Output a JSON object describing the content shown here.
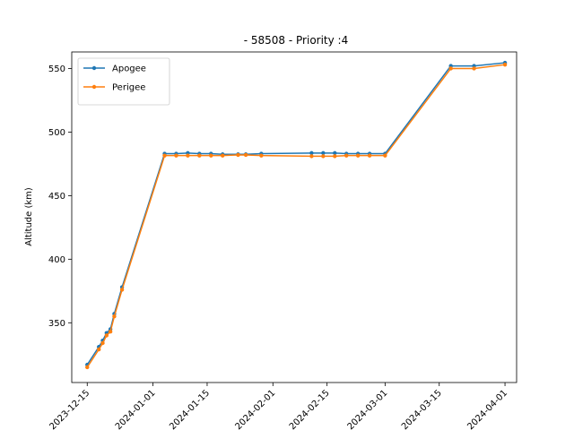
{
  "chart_data": {
    "type": "line",
    "title": "- 58508 - Priority :4",
    "xlabel": "",
    "ylabel": "Altitude (km)",
    "x_range": [
      "2023-12-11",
      "2024-04-04"
    ],
    "ylim": [
      303,
      563
    ],
    "x_ticks": [
      "2023-12-15",
      "2024-01-01",
      "2024-01-15",
      "2024-02-01",
      "2024-02-15",
      "2024-03-01",
      "2024-03-15",
      "2024-04-01"
    ],
    "y_ticks": [
      350,
      400,
      450,
      500,
      550
    ],
    "grid": false,
    "legend_position": "top-left",
    "series": [
      {
        "name": "Apogee",
        "color": "#1f77b4",
        "points": [
          [
            "2023-12-15",
            317
          ],
          [
            "2023-12-18",
            331
          ],
          [
            "2023-12-19",
            336
          ],
          [
            "2023-12-20",
            342
          ],
          [
            "2023-12-21",
            345
          ],
          [
            "2023-12-22",
            357
          ],
          [
            "2023-12-24",
            378
          ],
          [
            "2024-01-04",
            483
          ],
          [
            "2024-01-07",
            483
          ],
          [
            "2024-01-10",
            483.5
          ],
          [
            "2024-01-13",
            483
          ],
          [
            "2024-01-16",
            483
          ],
          [
            "2024-01-19",
            482.5
          ],
          [
            "2024-01-23",
            482.5
          ],
          [
            "2024-01-25",
            482.5
          ],
          [
            "2024-01-29",
            483
          ],
          [
            "2024-02-11",
            483.5
          ],
          [
            "2024-02-14",
            483.5
          ],
          [
            "2024-02-17",
            483.5
          ],
          [
            "2024-02-20",
            483
          ],
          [
            "2024-02-23",
            483
          ],
          [
            "2024-02-26",
            483
          ],
          [
            "2024-03-01",
            483
          ],
          [
            "2024-03-18",
            552
          ],
          [
            "2024-03-24",
            552
          ],
          [
            "2024-04-01",
            554.5
          ]
        ]
      },
      {
        "name": "Perigee",
        "color": "#ff7f0e",
        "points": [
          [
            "2023-12-15",
            315
          ],
          [
            "2023-12-18",
            329
          ],
          [
            "2023-12-19",
            334
          ],
          [
            "2023-12-20",
            340
          ],
          [
            "2023-12-21",
            343
          ],
          [
            "2023-12-22",
            355
          ],
          [
            "2023-12-24",
            376
          ],
          [
            "2024-01-04",
            481.5
          ],
          [
            "2024-01-07",
            481.5
          ],
          [
            "2024-01-10",
            481.5
          ],
          [
            "2024-01-13",
            481.5
          ],
          [
            "2024-01-16",
            481.5
          ],
          [
            "2024-01-19",
            481.5
          ],
          [
            "2024-01-23",
            482
          ],
          [
            "2024-01-25",
            482
          ],
          [
            "2024-01-29",
            481.5
          ],
          [
            "2024-02-11",
            481
          ],
          [
            "2024-02-14",
            481
          ],
          [
            "2024-02-17",
            481
          ],
          [
            "2024-02-20",
            481.5
          ],
          [
            "2024-02-23",
            481.5
          ],
          [
            "2024-02-26",
            481.5
          ],
          [
            "2024-03-01",
            481.5
          ],
          [
            "2024-03-18",
            550
          ],
          [
            "2024-03-24",
            550
          ],
          [
            "2024-04-01",
            553
          ]
        ]
      }
    ]
  }
}
